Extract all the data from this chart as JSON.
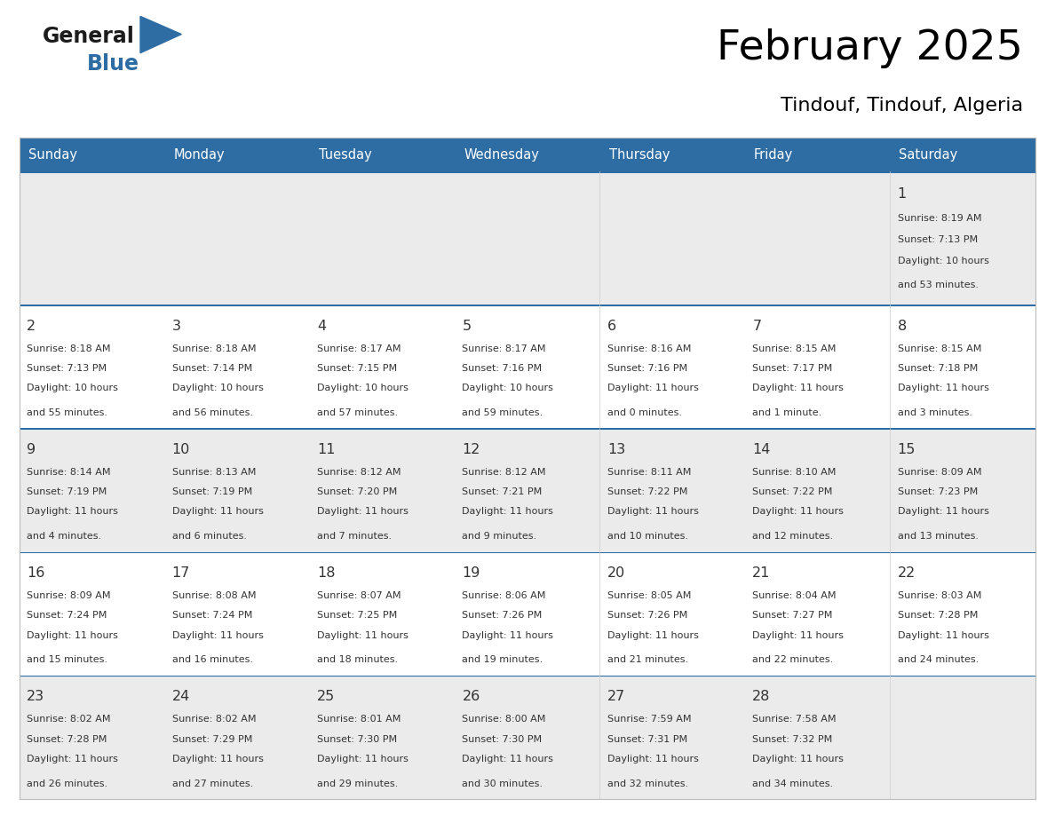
{
  "title": "February 2025",
  "subtitle": "Tindouf, Tindouf, Algeria",
  "header_bg": "#2E6DA4",
  "header_text": "#FFFFFF",
  "cell_bg_light": "#EBEBEB",
  "cell_bg_white": "#FFFFFF",
  "border_color": "#2E6DA4",
  "text_color": "#333333",
  "day_num_color": "#333333",
  "day_headers": [
    "Sunday",
    "Monday",
    "Tuesday",
    "Wednesday",
    "Thursday",
    "Friday",
    "Saturday"
  ],
  "calendar": [
    [
      null,
      null,
      null,
      null,
      null,
      null,
      {
        "day": 1,
        "sunrise": "8:19 AM",
        "sunset": "7:13 PM",
        "daylight": "10 hours\nand 53 minutes."
      }
    ],
    [
      {
        "day": 2,
        "sunrise": "8:18 AM",
        "sunset": "7:13 PM",
        "daylight": "10 hours\nand 55 minutes."
      },
      {
        "day": 3,
        "sunrise": "8:18 AM",
        "sunset": "7:14 PM",
        "daylight": "10 hours\nand 56 minutes."
      },
      {
        "day": 4,
        "sunrise": "8:17 AM",
        "sunset": "7:15 PM",
        "daylight": "10 hours\nand 57 minutes."
      },
      {
        "day": 5,
        "sunrise": "8:17 AM",
        "sunset": "7:16 PM",
        "daylight": "10 hours\nand 59 minutes."
      },
      {
        "day": 6,
        "sunrise": "8:16 AM",
        "sunset": "7:16 PM",
        "daylight": "11 hours\nand 0 minutes."
      },
      {
        "day": 7,
        "sunrise": "8:15 AM",
        "sunset": "7:17 PM",
        "daylight": "11 hours\nand 1 minute."
      },
      {
        "day": 8,
        "sunrise": "8:15 AM",
        "sunset": "7:18 PM",
        "daylight": "11 hours\nand 3 minutes."
      }
    ],
    [
      {
        "day": 9,
        "sunrise": "8:14 AM",
        "sunset": "7:19 PM",
        "daylight": "11 hours\nand 4 minutes."
      },
      {
        "day": 10,
        "sunrise": "8:13 AM",
        "sunset": "7:19 PM",
        "daylight": "11 hours\nand 6 minutes."
      },
      {
        "day": 11,
        "sunrise": "8:12 AM",
        "sunset": "7:20 PM",
        "daylight": "11 hours\nand 7 minutes."
      },
      {
        "day": 12,
        "sunrise": "8:12 AM",
        "sunset": "7:21 PM",
        "daylight": "11 hours\nand 9 minutes."
      },
      {
        "day": 13,
        "sunrise": "8:11 AM",
        "sunset": "7:22 PM",
        "daylight": "11 hours\nand 10 minutes."
      },
      {
        "day": 14,
        "sunrise": "8:10 AM",
        "sunset": "7:22 PM",
        "daylight": "11 hours\nand 12 minutes."
      },
      {
        "day": 15,
        "sunrise": "8:09 AM",
        "sunset": "7:23 PM",
        "daylight": "11 hours\nand 13 minutes."
      }
    ],
    [
      {
        "day": 16,
        "sunrise": "8:09 AM",
        "sunset": "7:24 PM",
        "daylight": "11 hours\nand 15 minutes."
      },
      {
        "day": 17,
        "sunrise": "8:08 AM",
        "sunset": "7:24 PM",
        "daylight": "11 hours\nand 16 minutes."
      },
      {
        "day": 18,
        "sunrise": "8:07 AM",
        "sunset": "7:25 PM",
        "daylight": "11 hours\nand 18 minutes."
      },
      {
        "day": 19,
        "sunrise": "8:06 AM",
        "sunset": "7:26 PM",
        "daylight": "11 hours\nand 19 minutes."
      },
      {
        "day": 20,
        "sunrise": "8:05 AM",
        "sunset": "7:26 PM",
        "daylight": "11 hours\nand 21 minutes."
      },
      {
        "day": 21,
        "sunrise": "8:04 AM",
        "sunset": "7:27 PM",
        "daylight": "11 hours\nand 22 minutes."
      },
      {
        "day": 22,
        "sunrise": "8:03 AM",
        "sunset": "7:28 PM",
        "daylight": "11 hours\nand 24 minutes."
      }
    ],
    [
      {
        "day": 23,
        "sunrise": "8:02 AM",
        "sunset": "7:28 PM",
        "daylight": "11 hours\nand 26 minutes."
      },
      {
        "day": 24,
        "sunrise": "8:02 AM",
        "sunset": "7:29 PM",
        "daylight": "11 hours\nand 27 minutes."
      },
      {
        "day": 25,
        "sunrise": "8:01 AM",
        "sunset": "7:30 PM",
        "daylight": "11 hours\nand 29 minutes."
      },
      {
        "day": 26,
        "sunrise": "8:00 AM",
        "sunset": "7:30 PM",
        "daylight": "11 hours\nand 30 minutes."
      },
      {
        "day": 27,
        "sunrise": "7:59 AM",
        "sunset": "7:31 PM",
        "daylight": "11 hours\nand 32 minutes."
      },
      {
        "day": 28,
        "sunrise": "7:58 AM",
        "sunset": "7:32 PM",
        "daylight": "11 hours\nand 34 minutes."
      },
      null
    ]
  ],
  "logo_color": "#2E6DA4",
  "figsize": [
    11.88,
    9.18
  ],
  "dpi": 100
}
